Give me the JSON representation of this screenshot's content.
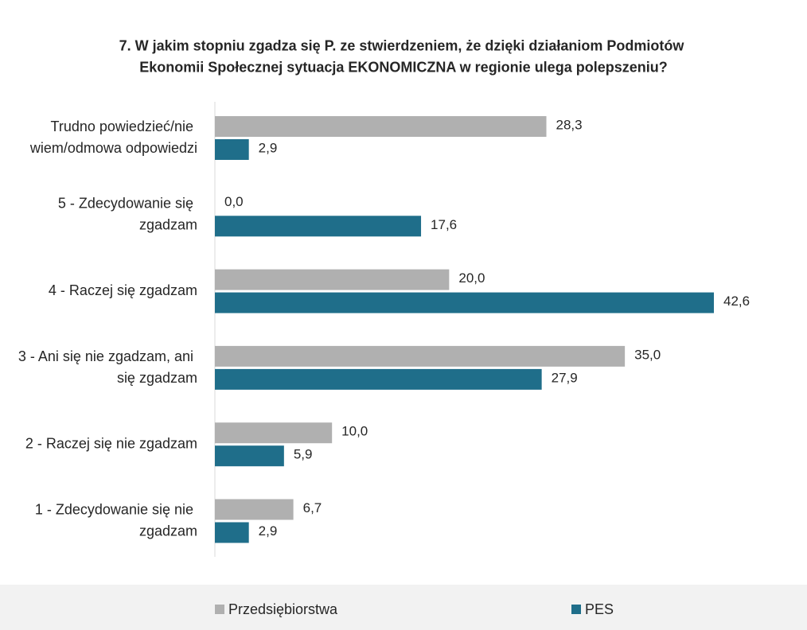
{
  "chart_data": {
    "type": "bar",
    "orientation": "horizontal",
    "title": "7. W jakim stopniu zgadza się P. ze stwierdzeniem, że dzięki działaniom Podmiotów Ekonomii Społecznej sytuacja EKONOMICZNA w regionie ulega polepszeniu?",
    "categories": [
      "Trudno powiedzieć/nie wiem/odmowa odpowiedzi",
      "5 - Zdecydowanie się zgadzam",
      "4 - Raczej się zgadzam",
      "3 - Ani się nie zgadzam, ani się zgadzam",
      "2 - Raczej się nie zgadzam",
      "1 - Zdecydowanie się nie zgadzam"
    ],
    "series": [
      {
        "name": "Przedsiębiorstwa",
        "color": "#b0b0b0",
        "values": [
          28.3,
          0.0,
          20.0,
          35.0,
          10.0,
          6.7
        ],
        "value_labels": [
          "28,3",
          "0,0",
          "20,0",
          "35,0",
          "10,0",
          "6,7"
        ]
      },
      {
        "name": "PES",
        "color": "#1f6e8a",
        "values": [
          2.9,
          17.6,
          42.6,
          27.9,
          5.9,
          2.9
        ],
        "value_labels": [
          "2,9",
          "17,6",
          "42,6",
          "27,9",
          "5,9",
          "2,9"
        ]
      }
    ],
    "legend": "bottom"
  }
}
